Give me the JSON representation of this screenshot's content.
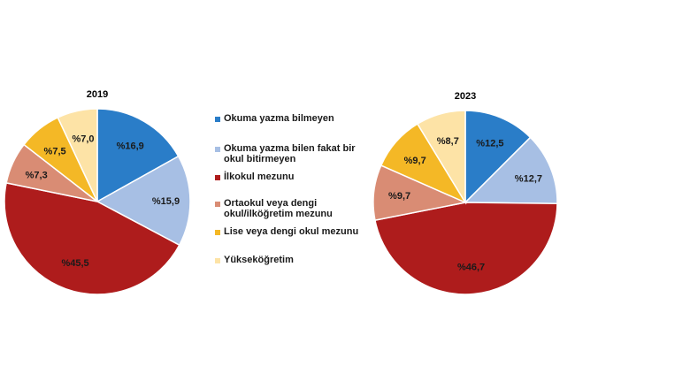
{
  "chart_data": [
    {
      "type": "pie",
      "title": "2019",
      "categories": [
        "Okuma yazma bilmeyen",
        "Okuma yazma bilen fakat bir okul bitirmeyen",
        "İlkokul mezunu",
        "Ortaokul veya dengi okul/ilköğretim mezunu",
        "Lise veya dengi okul mezunu",
        "Yükseköğretim"
      ],
      "values": [
        16.9,
        15.9,
        45.5,
        7.3,
        7.5,
        7.0
      ],
      "value_labels": [
        "%16,9",
        "%15,9",
        "%45,5",
        "%7,3",
        "%7,5",
        "%7,0"
      ]
    },
    {
      "type": "pie",
      "title": "2023",
      "categories": [
        "Okuma yazma bilmeyen",
        "Okuma yazma bilen fakat bir okul bitirmeyen",
        "İlkokul mezunu",
        "Ortaokul veya dengi okul/ilköğretim mezunu",
        "Lise veya dengi okul mezunu",
        "Yükseköğretim"
      ],
      "values": [
        12.5,
        12.7,
        46.7,
        9.7,
        9.7,
        8.7
      ],
      "value_labels": [
        "%12,5",
        "%12,7",
        "%46,7",
        "%9,7",
        "%9,7",
        "%8,7"
      ]
    }
  ],
  "legend": {
    "items": [
      {
        "label": "Okuma yazma bilmeyen",
        "color": "#2a7dc8"
      },
      {
        "label": "Okuma yazma bilen fakat bir\nokul bitirmeyen",
        "color": "#a7bfe4"
      },
      {
        "label": "İlkokul mezunu",
        "color": "#ae1c1c"
      },
      {
        "label": "Ortaokul veya dengi\nokul/ilköğretim mezunu",
        "color": "#d98c74"
      },
      {
        "label": "Lise veya dengi okul mezunu",
        "color": "#f4b826"
      },
      {
        "label": "Yükseköğretim",
        "color": "#fde3a6"
      }
    ]
  },
  "colors": [
    "#2a7dc8",
    "#a7bfe4",
    "#ae1c1c",
    "#d98c74",
    "#f4b826",
    "#fde3a6"
  ]
}
